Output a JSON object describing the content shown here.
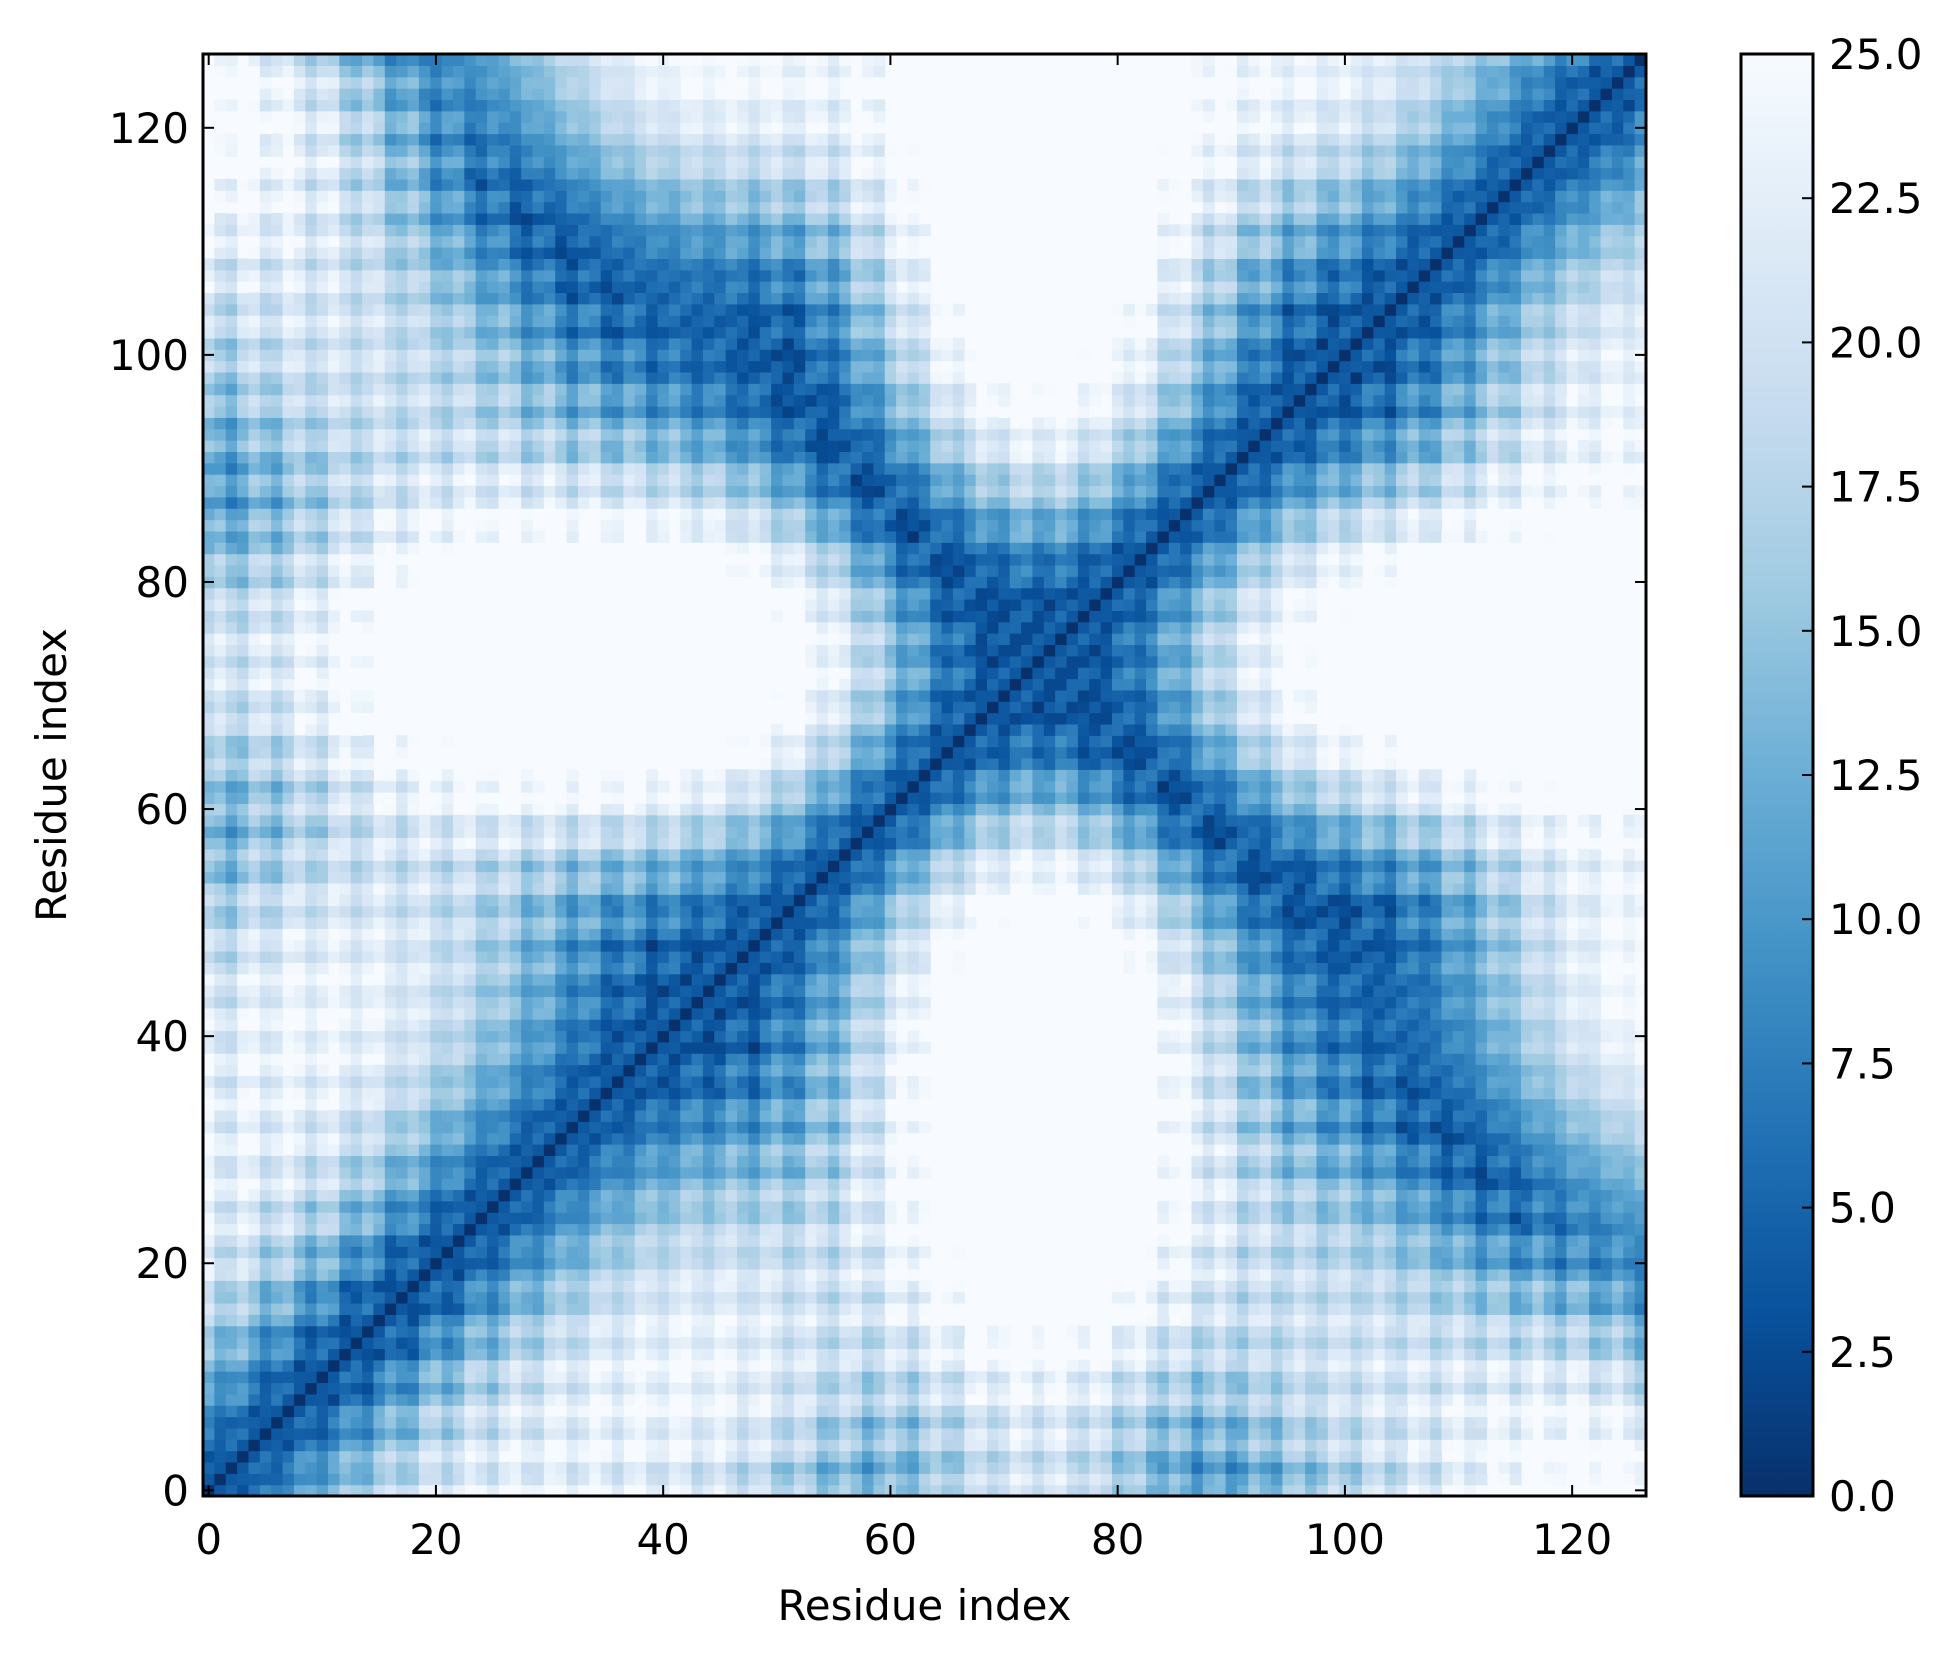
{
  "chart_data": {
    "type": "heatmap",
    "title": "",
    "xlabel": "Residue index",
    "ylabel": "Residue index",
    "xlim": [
      -0.5,
      126.5
    ],
    "ylim": [
      -0.5,
      126.5
    ],
    "x_ticks": [
      0,
      20,
      40,
      60,
      80,
      100,
      120
    ],
    "y_ticks": [
      0,
      20,
      40,
      60,
      80,
      100,
      120
    ],
    "x_tick_labels": [
      "0",
      "20",
      "40",
      "60",
      "80",
      "100",
      "120"
    ],
    "y_tick_labels": [
      "0",
      "20",
      "40",
      "60",
      "80",
      "100",
      "120"
    ],
    "n_residues": 127,
    "colormap": "Blues_r",
    "colormap_stops": [
      "#08306b",
      "#08519c",
      "#2171b5",
      "#4292c6",
      "#6baed6",
      "#9ecae1",
      "#c6dbef",
      "#deebf7",
      "#f7fbff"
    ],
    "colorbar": {
      "vmin": 0.0,
      "vmax": 25.0,
      "ticks": [
        0.0,
        2.5,
        5.0,
        7.5,
        10.0,
        12.5,
        15.0,
        17.5,
        20.0,
        22.5,
        25.0
      ],
      "tick_labels": [
        "0.0",
        "2.5",
        "5.0",
        "7.5",
        "10.0",
        "12.5",
        "15.0",
        "17.5",
        "20.0",
        "22.5",
        "25.0"
      ]
    },
    "description_of_values": "symmetric distance matrix; 0 on the main diagonal, dark bands adjacent to diagonal, saturated at 25.0 elsewhere",
    "grid": false,
    "legend": "colorbar-right"
  }
}
